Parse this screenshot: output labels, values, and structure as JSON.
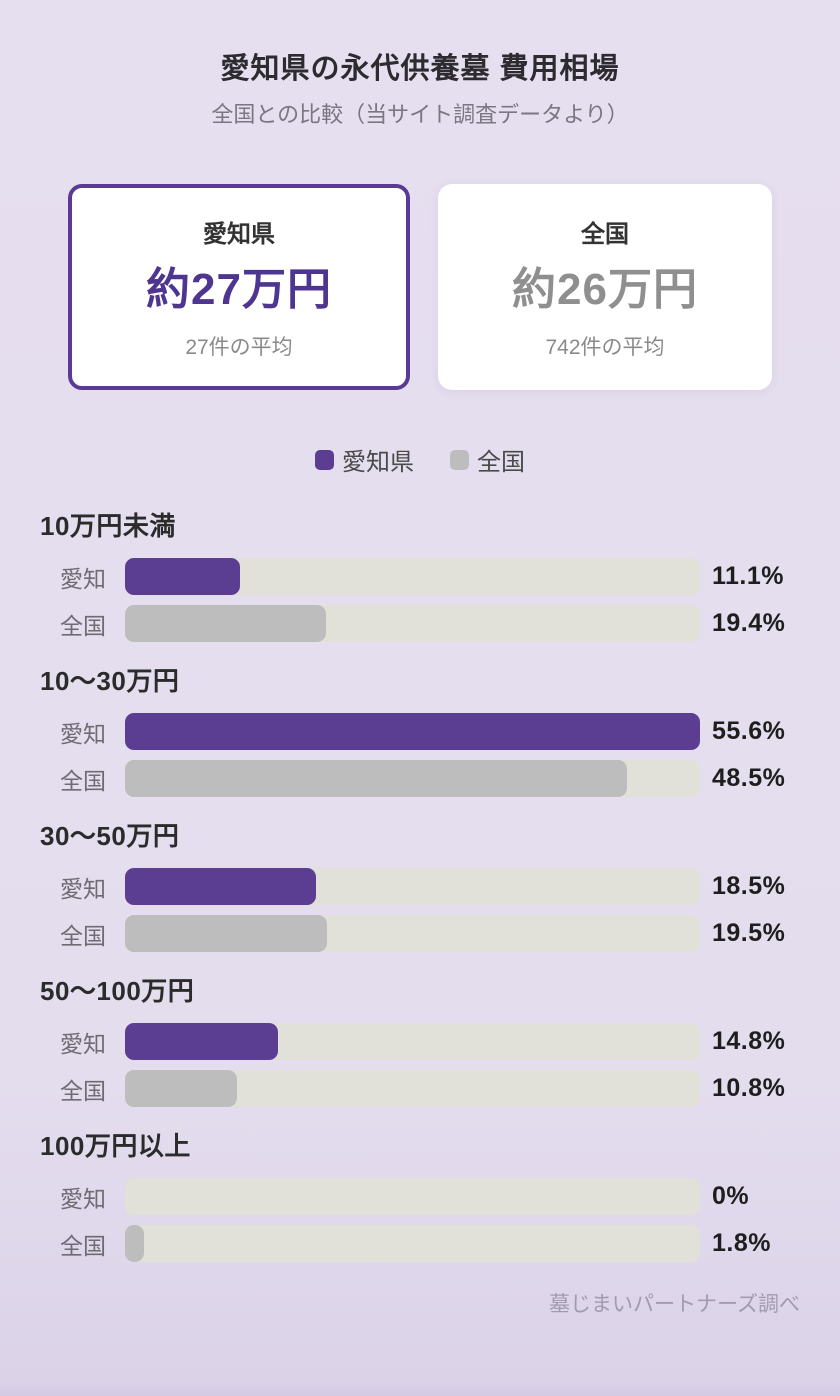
{
  "page": {
    "title": "愛知県の永代供養墓 費用相場",
    "subtitle": "全国との比較（当サイト調査データより）",
    "footer": "墓じまいパートナーズ調べ"
  },
  "summary_cards": [
    {
      "id": "aichi",
      "label": "愛知県",
      "value": "約27万円",
      "note": "27件の平均"
    },
    {
      "id": "zenkoku",
      "label": "全国",
      "value": "約26万円",
      "note": "742件の平均"
    }
  ],
  "legend": [
    {
      "label": "愛知県",
      "color": "#5b3e91"
    },
    {
      "label": "全国",
      "color": "#bdbdbd"
    }
  ],
  "chart_data": {
    "type": "bar",
    "orientation": "horizontal",
    "title": "愛知県の永代供養墓 費用相場",
    "subtitle": "全国との比較（当サイト調査データより）",
    "categories": [
      "10万円未満",
      "10〜30万円",
      "30〜50万円",
      "50〜100万円",
      "100万円以上"
    ],
    "series": [
      {
        "name": "愛知",
        "color": "#5b3e91",
        "values": [
          11.1,
          55.6,
          18.5,
          14.8,
          0
        ]
      },
      {
        "name": "全国",
        "color": "#bdbdbd",
        "values": [
          19.4,
          48.5,
          19.5,
          10.8,
          1.8
        ]
      }
    ],
    "value_labels": [
      [
        "11.1%",
        "19.4%"
      ],
      [
        "55.6%",
        "48.5%"
      ],
      [
        "18.5%",
        "19.5%"
      ],
      [
        "14.8%",
        "10.8%"
      ],
      [
        "0%",
        "1.8%"
      ]
    ],
    "unit": "%",
    "scale_max": 55.6,
    "track_color": "#e2e1d9",
    "grid": false,
    "legend_position": "top"
  },
  "colors": {
    "background": "#e4ddee",
    "accent_purple": "#5b3e91",
    "card_border": "#5a3a96",
    "pref_value_text": "#4e3590",
    "nation_value_text": "#8f8f8f",
    "bar_gray": "#bdbdbd",
    "bar_track": "#e2e1d9"
  }
}
